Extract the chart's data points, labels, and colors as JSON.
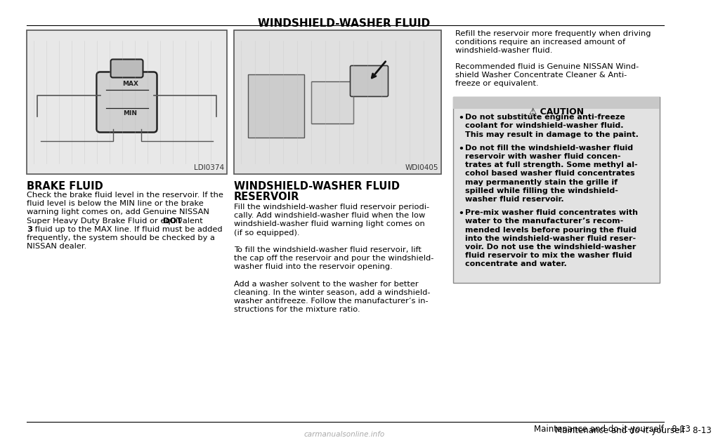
{
  "page_title": "WINDSHIELD-WASHER FLUID",
  "bg_color": "#ffffff",
  "left_image_code": "LDI0374",
  "right_image_code": "WDI0405",
  "left_section_title": "BRAKE FLUID",
  "right_section_title_line1": "WINDSHIELD-WASHER FLUID",
  "right_section_title_line2": "RESERVOIR",
  "right_column_text1_lines": [
    "Refill the reservoir more frequently when driving",
    "conditions require an increased amount of",
    "windshield-washer fluid."
  ],
  "right_column_text2_lines": [
    "Recommended fluid is Genuine NISSAN Wind-",
    "shield Washer Concentrate Cleaner & Anti-",
    "freeze or equivalent."
  ],
  "caution_title": "⚠ CAUTION",
  "caution_items": [
    [
      "Do not substitute engine anti-freeze",
      "coolant for windshield-washer fluid.",
      "This may result in damage to the paint."
    ],
    [
      "Do not fill the windshield-washer fluid",
      "reservoir with washer fluid concen-",
      "trates at full strength. Some methyl al-",
      "cohol based washer fluid concentrates",
      "may permanently stain the grille if",
      "spilled while filling the windshield-",
      "washer fluid reservoir."
    ],
    [
      "Pre-mix washer fluid concentrates with",
      "water to the manufacturer’s recom-",
      "mended levels before pouring the fluid",
      "into the windshield-washer fluid reser-",
      "voir. Do not use the windshield-washer",
      "fluid reservoir to mix the washer fluid",
      "concentrate and water."
    ]
  ],
  "left_body_lines": [
    {
      "text": "Check the brake fluid level in the reservoir. If the",
      "bold": false
    },
    {
      "text": "fluid level is below the MIN line or the brake",
      "bold": false
    },
    {
      "text": "warning light comes on, add Genuine NISSAN",
      "bold": false
    },
    {
      "text": "Super Heavy Duty Brake Fluid or equivalent ",
      "bold": false,
      "extra_bold": "DOT"
    },
    {
      "text": "3",
      "bold": true,
      "extra_normal": " fluid up to the MAX line. If fluid must be added"
    },
    {
      "text": "frequently, the system should be checked by a",
      "bold": false
    },
    {
      "text": "NISSAN dealer.",
      "bold": false
    }
  ],
  "right_body_lines": [
    "Fill the windshield-washer fluid reservoir periodi-",
    "cally. Add windshield-washer fluid when the low",
    "windshield-washer fluid warning light comes on",
    "(if so equipped).",
    "",
    "To fill the windshield-washer fluid reservoir, lift",
    "the cap off the reservoir and pour the windshield-",
    "washer fluid into the reservoir opening.",
    "",
    "Add a washer solvent to the washer for better",
    "cleaning. In the winter season, add a windshield-",
    "washer antifreeze. Follow the manufacturer’s in-",
    "structions for the mixture ratio."
  ],
  "footer_text": "Maintenance and do-it-yourself",
  "footer_page": "8-13",
  "watermark": "carmanualsonline.info"
}
